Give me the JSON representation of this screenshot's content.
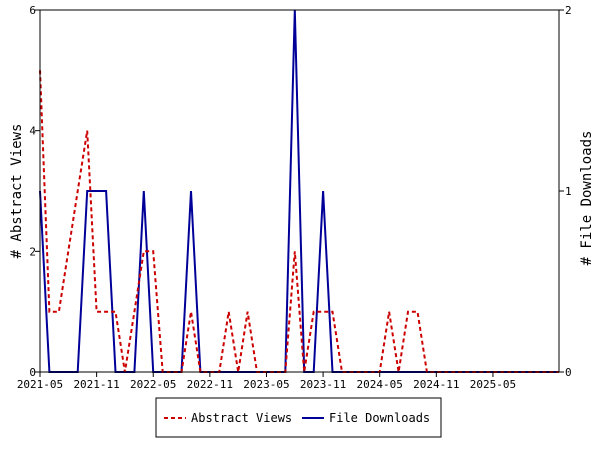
{
  "chart_data": {
    "type": "line",
    "title": "",
    "xlabel": "",
    "ylabel_left": "# Abstract Views",
    "ylabel_right": "# File Downloads",
    "x_tick_labels": [
      "2021-05",
      "2021-11",
      "2022-05",
      "2022-11",
      "2023-05",
      "2023-11",
      "2024-05",
      "2024-11",
      "2025-05"
    ],
    "x_range_months": [
      "2021-05",
      "2025-12"
    ],
    "y_left_ticks": [
      "0",
      "2",
      "4",
      "6"
    ],
    "y_left_range": [
      0,
      6
    ],
    "y_right_ticks": [
      "0",
      "1",
      "2"
    ],
    "y_right_range": [
      0,
      2
    ],
    "grid": false,
    "legend_position": "bottom-center",
    "x": [
      "2021-05",
      "2021-06",
      "2021-07",
      "2021-08",
      "2021-09",
      "2021-10",
      "2021-11",
      "2021-12",
      "2022-01",
      "2022-02",
      "2022-03",
      "2022-04",
      "2022-05",
      "2022-06",
      "2022-07",
      "2022-08",
      "2022-09",
      "2022-10",
      "2022-11",
      "2022-12",
      "2023-01",
      "2023-02",
      "2023-03",
      "2023-04",
      "2023-05",
      "2023-06",
      "2023-07",
      "2023-08",
      "2023-09",
      "2023-10",
      "2023-11",
      "2023-12",
      "2024-01",
      "2024-02",
      "2024-03",
      "2024-04",
      "2024-05",
      "2024-06",
      "2024-07",
      "2024-08",
      "2024-09",
      "2024-10",
      "2024-11",
      "2024-12",
      "2025-01",
      "2025-02",
      "2025-03",
      "2025-04",
      "2025-05",
      "2025-06",
      "2025-07",
      "2025-08",
      "2025-09",
      "2025-10",
      "2025-11",
      "2025-12"
    ],
    "series": [
      {
        "name": "Abstract Views",
        "axis": "left",
        "color": "#cc0000",
        "dash": "dashed",
        "values": [
          5,
          1,
          1,
          2,
          3,
          4,
          1,
          1,
          1,
          0,
          1,
          2,
          2,
          0,
          0,
          0,
          1,
          0,
          0,
          0,
          1,
          0,
          1,
          0,
          0,
          0,
          0,
          2,
          0,
          1,
          1,
          1,
          0,
          0,
          0,
          0,
          0,
          1,
          0,
          1,
          1,
          0,
          0,
          0,
          0,
          0,
          0,
          0,
          0,
          0,
          0,
          0,
          0,
          0,
          0,
          0
        ]
      },
      {
        "name": "File Downloads",
        "axis": "right",
        "color": "#000099",
        "dash": "solid",
        "values": [
          1,
          0,
          0,
          0,
          0,
          1,
          1,
          1,
          0,
          0,
          0,
          1,
          0,
          0,
          0,
          0,
          1,
          0,
          0,
          0,
          0,
          0,
          0,
          0,
          0,
          0,
          0,
          2,
          0,
          0,
          1,
          0,
          0,
          0,
          0,
          0,
          0,
          0,
          0,
          0,
          0,
          0,
          0,
          0,
          0,
          0,
          0,
          0,
          0,
          0,
          0,
          0,
          0,
          0,
          0,
          0
        ]
      }
    ]
  }
}
